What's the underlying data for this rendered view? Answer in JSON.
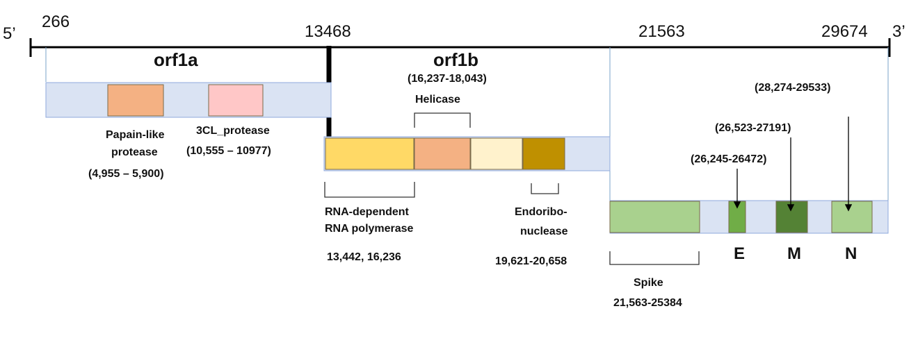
{
  "axis": {
    "five_prime": "5’",
    "three_prime": "3’",
    "pos_266": "266",
    "pos_13468": "13468",
    "pos_21563": "21563",
    "pos_29674": "29674"
  },
  "orf1a": {
    "title": "orf1a",
    "papain_label_1": "Papain-like",
    "papain_label_2": "protease",
    "papain_range": "(4,955 – 5,900)",
    "cl3_label": "3CL_protease",
    "cl3_range": "(10,555 – 10977)"
  },
  "orf1b": {
    "title": "orf1b",
    "helicase_range": "(16,237-18,043)",
    "helicase_label": "Helicase",
    "rdrp_label_1": "RNA-dependent",
    "rdrp_label_2": "RNA polymerase",
    "rdrp_range": "13,442, 16,236",
    "endo_label_1": "Endoribo-",
    "endo_label_2": "nuclease",
    "endo_range": "19,621-20,658"
  },
  "structural": {
    "spike_label": "Spike",
    "spike_range": "21,563-25384",
    "e_range": "(26,245-26472)",
    "m_range": "(26,523-27191)",
    "n_range": "(28,274-29533)",
    "e_label": "E",
    "m_label": "M",
    "n_label": "N"
  },
  "colors": {
    "track": "#dae3f3",
    "papain": "#f4b183",
    "cl3": "#ffc7c7",
    "rdrp": "#ffd966",
    "helicase": "#f4b183",
    "cream": "#fff2cc",
    "endo": "#bf9000",
    "spike": "#a9d18e",
    "e_gene": "#70ad47",
    "m_gene": "#548235",
    "n_gene": "#a9d18e"
  }
}
